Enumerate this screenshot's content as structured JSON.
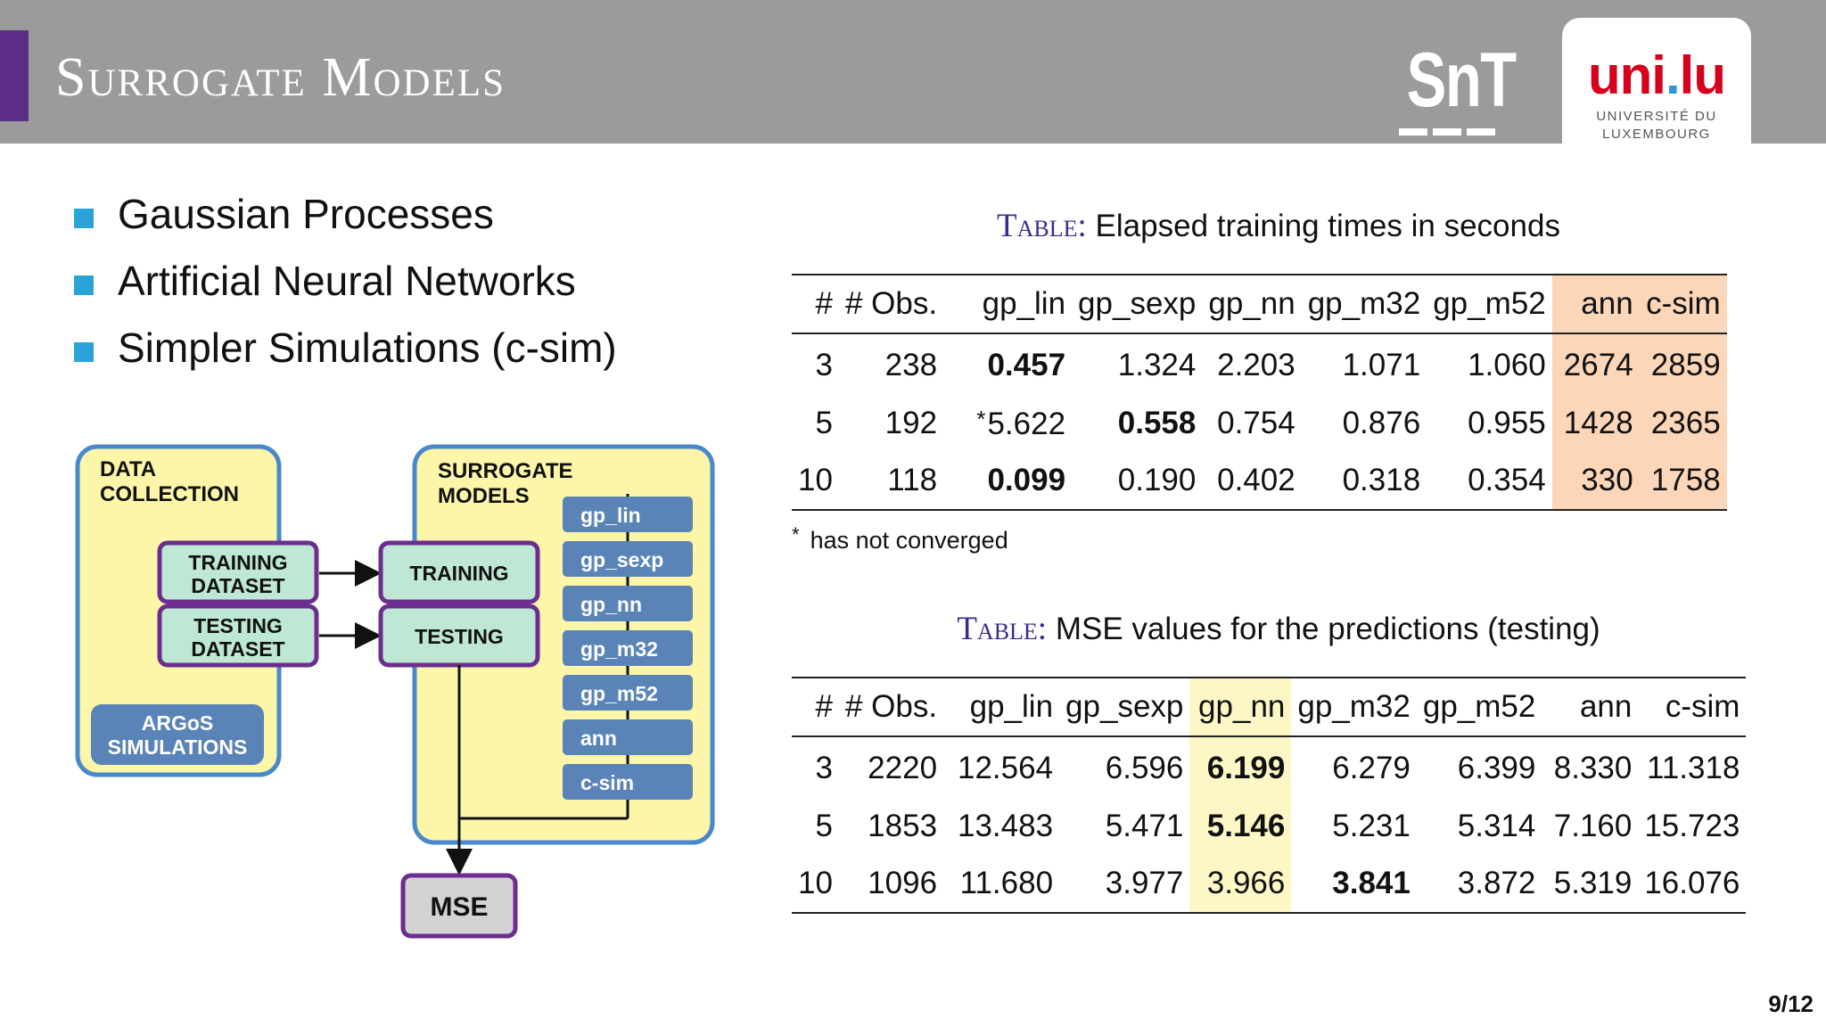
{
  "header": {
    "title": "Surrogate Models",
    "logos": {
      "snt": "SnT",
      "uni_mark_left": "uni",
      "uni_mark_dot": ".",
      "uni_mark_right": "lu",
      "uni_line1": "UNIVERSITÉ DU",
      "uni_line2": "LUXEMBOURG"
    }
  },
  "bullets": [
    "Gaussian Processes",
    "Artificial Neural Networks",
    "Simpler Simulations (c-sim)"
  ],
  "diagram": {
    "data_collection": [
      "DATA",
      "COLLECTION"
    ],
    "training_dataset": [
      "TRAINING",
      "DATASET"
    ],
    "testing_dataset": [
      "TESTING",
      "DATASET"
    ],
    "argos": [
      "ARGoS",
      "SIMULATIONS"
    ],
    "surrogate_models": [
      "SURROGATE",
      "MODELS"
    ],
    "training": "TRAINING",
    "testing": "TESTING",
    "models": [
      "gp_lin",
      "gp_sexp",
      "gp_nn",
      "gp_m32",
      "gp_m52",
      "ann",
      "c-sim"
    ],
    "mse": "MSE",
    "colors": {
      "outer_fill": "#fdf6a8",
      "outer_stroke": "#4a88cc",
      "dataset_fill": "#bfe8d4",
      "dataset_stroke": "#6b2d8e",
      "model_fill": "#5a84b8",
      "mse_fill": "#d3d3d3"
    }
  },
  "table1": {
    "caption_tag": "Table:",
    "caption": "Elapsed training times in seconds",
    "headers": [
      "#",
      "# Obs.",
      "gp_lin",
      "gp_sexp",
      "gp_nn",
      "gp_m32",
      "gp_m52",
      "ann",
      "c-sim"
    ],
    "rows": [
      [
        "3",
        "238",
        "0.457",
        "1.324",
        "2.203",
        "1.071",
        "1.060",
        "2674",
        "2859"
      ],
      [
        "5",
        "192",
        "5.622",
        "0.558",
        "0.754",
        "0.876",
        "0.955",
        "1428",
        "2365"
      ],
      [
        "10",
        "118",
        "0.099",
        "0.190",
        "0.402",
        "0.318",
        "0.354",
        "330",
        "1758"
      ]
    ],
    "footnote_mark": "*",
    "footnote": "has not converged"
  },
  "table2": {
    "caption_tag": "Table:",
    "caption": "MSE values for the predictions (testing)",
    "headers": [
      "#",
      "# Obs.",
      "gp_lin",
      "gp_sexp",
      "gp_nn",
      "gp_m32",
      "gp_m52",
      "ann",
      "c-sim"
    ],
    "rows": [
      [
        "3",
        "2220",
        "12.564",
        "6.596",
        "6.199",
        "6.279",
        "6.399",
        "8.330",
        "11.318"
      ],
      [
        "5",
        "1853",
        "13.483",
        "5.471",
        "5.146",
        "5.231",
        "5.314",
        "7.160",
        "15.723"
      ],
      [
        "10",
        "1096",
        "11.680",
        "3.977",
        "3.966",
        "3.841",
        "3.872",
        "5.319",
        "16.076"
      ]
    ]
  },
  "highlight_colors": {
    "peach": "#fbd6b8",
    "yellow": "#fdf7c6"
  },
  "page_number": "9/12"
}
